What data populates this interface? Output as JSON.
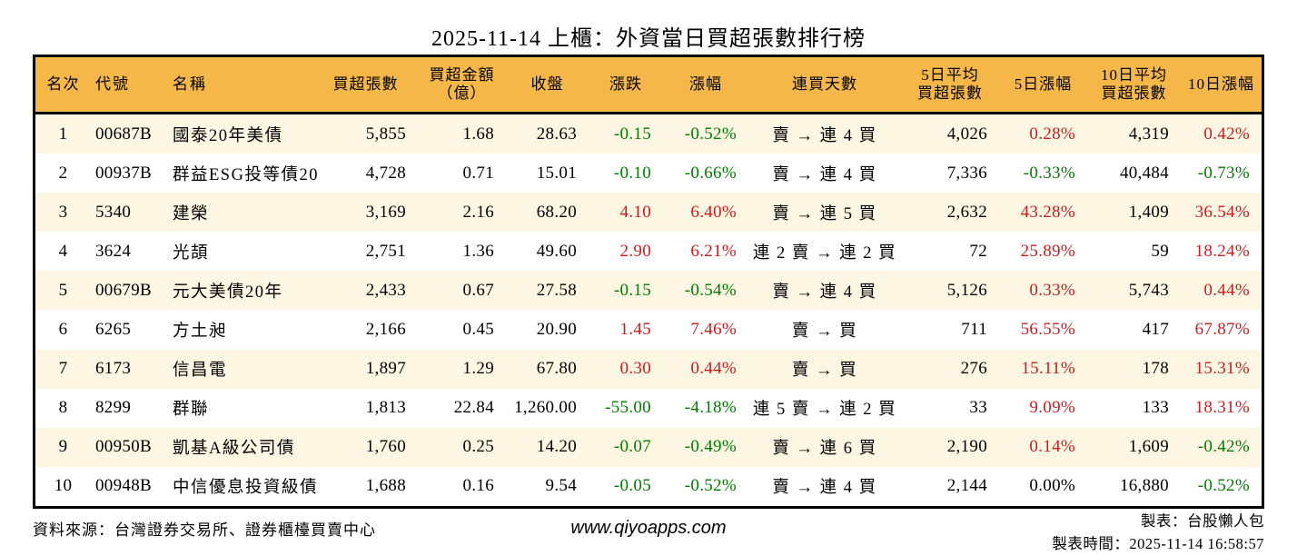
{
  "colors": {
    "up": "#CE1B1E",
    "down": "#007C00",
    "flat": "#000000",
    "header_bg": "#F4B748",
    "row_stripe": "#FDF6E2",
    "border": "#000000"
  },
  "chart_data": {
    "type": "table",
    "title": "2025-11-14 上櫃：外資當日買超張數排行榜",
    "columns": [
      {
        "id": "rank",
        "label": "名次"
      },
      {
        "id": "code",
        "label": "代號"
      },
      {
        "id": "name",
        "label": "名稱"
      },
      {
        "id": "shares",
        "label": "買超張數"
      },
      {
        "id": "amount",
        "label": "買超金額",
        "label2": "（億）"
      },
      {
        "id": "close",
        "label": "收盤"
      },
      {
        "id": "chg",
        "label": "漲跌"
      },
      {
        "id": "pct",
        "label": "漲幅"
      },
      {
        "id": "streak",
        "label": "連買天數"
      },
      {
        "id": "avg5",
        "label": "5日平均",
        "label2": "買超張數"
      },
      {
        "id": "pct5",
        "label": "5日漲幅"
      },
      {
        "id": "avg10",
        "label": "10日平均",
        "label2": "買超張數"
      },
      {
        "id": "pct10",
        "label": "10日漲幅"
      }
    ],
    "rows": [
      {
        "rank": "1",
        "code": "00687B",
        "name": "國泰20年美債",
        "shares": "5,855",
        "amount": "1.68",
        "close": "28.63",
        "chg": "-0.15",
        "chg_c": "down",
        "pct": "-0.52%",
        "pct_c": "down",
        "streak": "賣 → 連 4 買",
        "avg5": "4,026",
        "pct5": "0.28%",
        "pct5_c": "up",
        "avg10": "4,319",
        "pct10": "0.42%",
        "pct10_c": "up"
      },
      {
        "rank": "2",
        "code": "00937B",
        "name": "群益ESG投等債20",
        "shares": "4,728",
        "amount": "0.71",
        "close": "15.01",
        "chg": "-0.10",
        "chg_c": "down",
        "pct": "-0.66%",
        "pct_c": "down",
        "streak": "賣 → 連 4 買",
        "avg5": "7,336",
        "pct5": "-0.33%",
        "pct5_c": "down",
        "avg10": "40,484",
        "pct10": "-0.73%",
        "pct10_c": "down"
      },
      {
        "rank": "3",
        "code": "5340",
        "name": "建榮",
        "shares": "3,169",
        "amount": "2.16",
        "close": "68.20",
        "chg": "4.10",
        "chg_c": "up",
        "pct": "6.40%",
        "pct_c": "up",
        "streak": "賣 → 連 5 買",
        "avg5": "2,632",
        "pct5": "43.28%",
        "pct5_c": "up",
        "avg10": "1,409",
        "pct10": "36.54%",
        "pct10_c": "up"
      },
      {
        "rank": "4",
        "code": "3624",
        "name": "光頡",
        "shares": "2,751",
        "amount": "1.36",
        "close": "49.60",
        "chg": "2.90",
        "chg_c": "up",
        "pct": "6.21%",
        "pct_c": "up",
        "streak": "連 2 賣 → 連 2 買",
        "avg5": "72",
        "pct5": "25.89%",
        "pct5_c": "up",
        "avg10": "59",
        "pct10": "18.24%",
        "pct10_c": "up"
      },
      {
        "rank": "5",
        "code": "00679B",
        "name": "元大美債20年",
        "shares": "2,433",
        "amount": "0.67",
        "close": "27.58",
        "chg": "-0.15",
        "chg_c": "down",
        "pct": "-0.54%",
        "pct_c": "down",
        "streak": "賣 → 連 4 買",
        "avg5": "5,126",
        "pct5": "0.33%",
        "pct5_c": "up",
        "avg10": "5,743",
        "pct10": "0.44%",
        "pct10_c": "up"
      },
      {
        "rank": "6",
        "code": "6265",
        "name": "方土昶",
        "shares": "2,166",
        "amount": "0.45",
        "close": "20.90",
        "chg": "1.45",
        "chg_c": "up",
        "pct": "7.46%",
        "pct_c": "up",
        "streak": "賣 → 買",
        "avg5": "711",
        "pct5": "56.55%",
        "pct5_c": "up",
        "avg10": "417",
        "pct10": "67.87%",
        "pct10_c": "up"
      },
      {
        "rank": "7",
        "code": "6173",
        "name": "信昌電",
        "shares": "1,897",
        "amount": "1.29",
        "close": "67.80",
        "chg": "0.30",
        "chg_c": "up",
        "pct": "0.44%",
        "pct_c": "up",
        "streak": "賣 → 買",
        "avg5": "276",
        "pct5": "15.11%",
        "pct5_c": "up",
        "avg10": "178",
        "pct10": "15.31%",
        "pct10_c": "up"
      },
      {
        "rank": "8",
        "code": "8299",
        "name": "群聯",
        "shares": "1,813",
        "amount": "22.84",
        "close": "1,260.00",
        "chg": "-55.00",
        "chg_c": "down",
        "pct": "-4.18%",
        "pct_c": "down",
        "streak": "連 5 賣 → 連 2 買",
        "avg5": "33",
        "pct5": "9.09%",
        "pct5_c": "up",
        "avg10": "133",
        "pct10": "18.31%",
        "pct10_c": "up"
      },
      {
        "rank": "9",
        "code": "00950B",
        "name": "凱基A級公司債",
        "shares": "1,760",
        "amount": "0.25",
        "close": "14.20",
        "chg": "-0.07",
        "chg_c": "down",
        "pct": "-0.49%",
        "pct_c": "down",
        "streak": "賣 → 連 6 買",
        "avg5": "2,190",
        "pct5": "0.14%",
        "pct5_c": "up",
        "avg10": "1,609",
        "pct10": "-0.42%",
        "pct10_c": "down"
      },
      {
        "rank": "10",
        "code": "00948B",
        "name": "中信優息投資級債",
        "shares": "1,688",
        "amount": "0.16",
        "close": "9.54",
        "chg": "-0.05",
        "chg_c": "down",
        "pct": "-0.52%",
        "pct_c": "down",
        "streak": "賣 → 連 4 買",
        "avg5": "2,144",
        "pct5": "0.00%",
        "pct5_c": "flat",
        "avg10": "16,880",
        "pct10": "-0.52%",
        "pct10_c": "down"
      }
    ]
  },
  "footer": {
    "source": "資料來源：台灣證券交易所、證券櫃檯買賣中心",
    "site": "www.qiyoapps.com",
    "maker": "製表：台股懶人包",
    "generated": "製表時間：2025-11-14 16:58:57"
  }
}
